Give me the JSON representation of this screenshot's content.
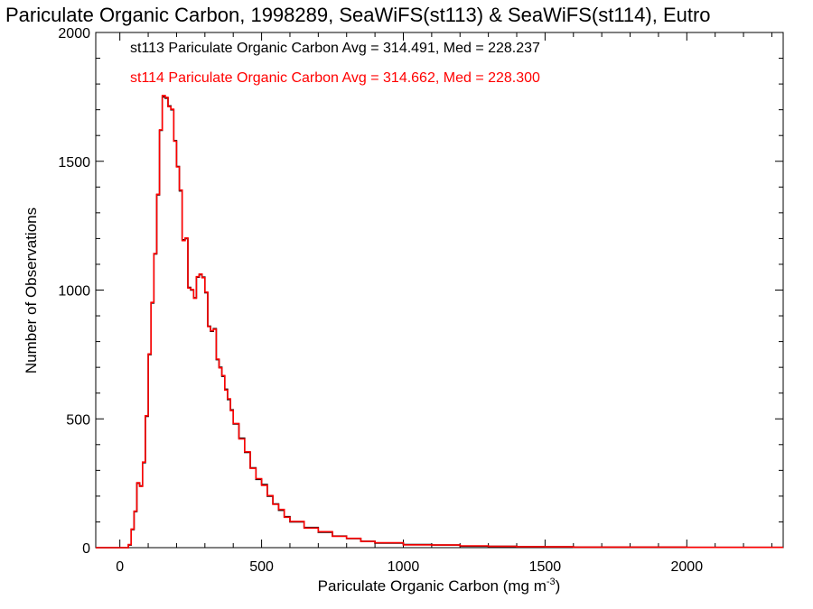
{
  "chart_data": {
    "type": "line",
    "title": "Pariculate Organic Carbon, 1998289, SeaWiFS(st113) & SeaWiFS(st114), Eutro",
    "xlabel_main": "Pariculate Organic Carbon (mg m",
    "xlabel_sup": "-3",
    "xlabel_end": ")",
    "ylabel": "Number of Observations",
    "xlim": [
      -85,
      2340
    ],
    "ylim": [
      0,
      2000
    ],
    "xticks": [
      0,
      500,
      1000,
      1500,
      2000
    ],
    "yticks": [
      0,
      500,
      1000,
      1500,
      2000
    ],
    "grid": false,
    "legend_position": "top-left",
    "series": [
      {
        "name": "st113 Pariculate Organic Carbon Avg = 314.491, Med = 228.237",
        "color": "#000000",
        "x": [
          -85,
          20,
          30,
          40,
          50,
          60,
          70,
          80,
          90,
          100,
          110,
          120,
          130,
          140,
          150,
          160,
          170,
          180,
          190,
          200,
          210,
          220,
          230,
          240,
          250,
          260,
          270,
          280,
          290,
          300,
          310,
          320,
          330,
          340,
          350,
          360,
          370,
          380,
          390,
          400,
          420,
          440,
          460,
          480,
          500,
          520,
          540,
          560,
          580,
          600,
          650,
          700,
          750,
          800,
          850,
          900,
          1000,
          1100,
          1200,
          1300,
          1400,
          1500,
          1600,
          1800,
          2000,
          2200,
          2340
        ],
        "y": [
          0,
          0,
          10,
          70,
          140,
          250,
          240,
          330,
          510,
          750,
          950,
          1140,
          1370,
          1620,
          1750,
          1745,
          1715,
          1700,
          1580,
          1480,
          1385,
          1195,
          1200,
          1010,
          1000,
          970,
          1050,
          1060,
          1050,
          990,
          860,
          840,
          850,
          730,
          700,
          665,
          615,
          575,
          535,
          480,
          425,
          370,
          310,
          265,
          245,
          200,
          170,
          145,
          120,
          100,
          78,
          60,
          45,
          35,
          25,
          18,
          12,
          10,
          6,
          5,
          4,
          3,
          2,
          2,
          1,
          1,
          1
        ]
      },
      {
        "name": "st114 Pariculate Organic Carbon Avg = 314.662, Med = 228.300",
        "color": "#ff0000",
        "x": [
          -85,
          20,
          30,
          40,
          50,
          60,
          70,
          80,
          90,
          100,
          110,
          120,
          130,
          140,
          150,
          160,
          170,
          180,
          190,
          200,
          210,
          220,
          230,
          240,
          250,
          260,
          270,
          280,
          290,
          300,
          310,
          320,
          330,
          340,
          350,
          360,
          370,
          380,
          390,
          400,
          420,
          440,
          460,
          480,
          500,
          520,
          540,
          560,
          580,
          600,
          650,
          700,
          750,
          800,
          850,
          900,
          1000,
          1100,
          1200,
          1300,
          1400,
          1500,
          1600,
          1800,
          2000,
          2200,
          2340
        ],
        "y": [
          0,
          0,
          12,
          72,
          142,
          252,
          238,
          332,
          512,
          752,
          952,
          1142,
          1372,
          1622,
          1755,
          1748,
          1712,
          1702,
          1578,
          1478,
          1388,
          1192,
          1202,
          1008,
          1002,
          968,
          1052,
          1062,
          1048,
          992,
          858,
          842,
          848,
          732,
          698,
          668,
          612,
          578,
          532,
          482,
          422,
          372,
          308,
          268,
          242,
          202,
          168,
          148,
          118,
          102,
          76,
          62,
          44,
          36,
          24,
          19,
          11,
          10,
          7,
          5,
          4,
          3,
          2,
          2,
          1,
          1,
          1
        ]
      }
    ]
  }
}
